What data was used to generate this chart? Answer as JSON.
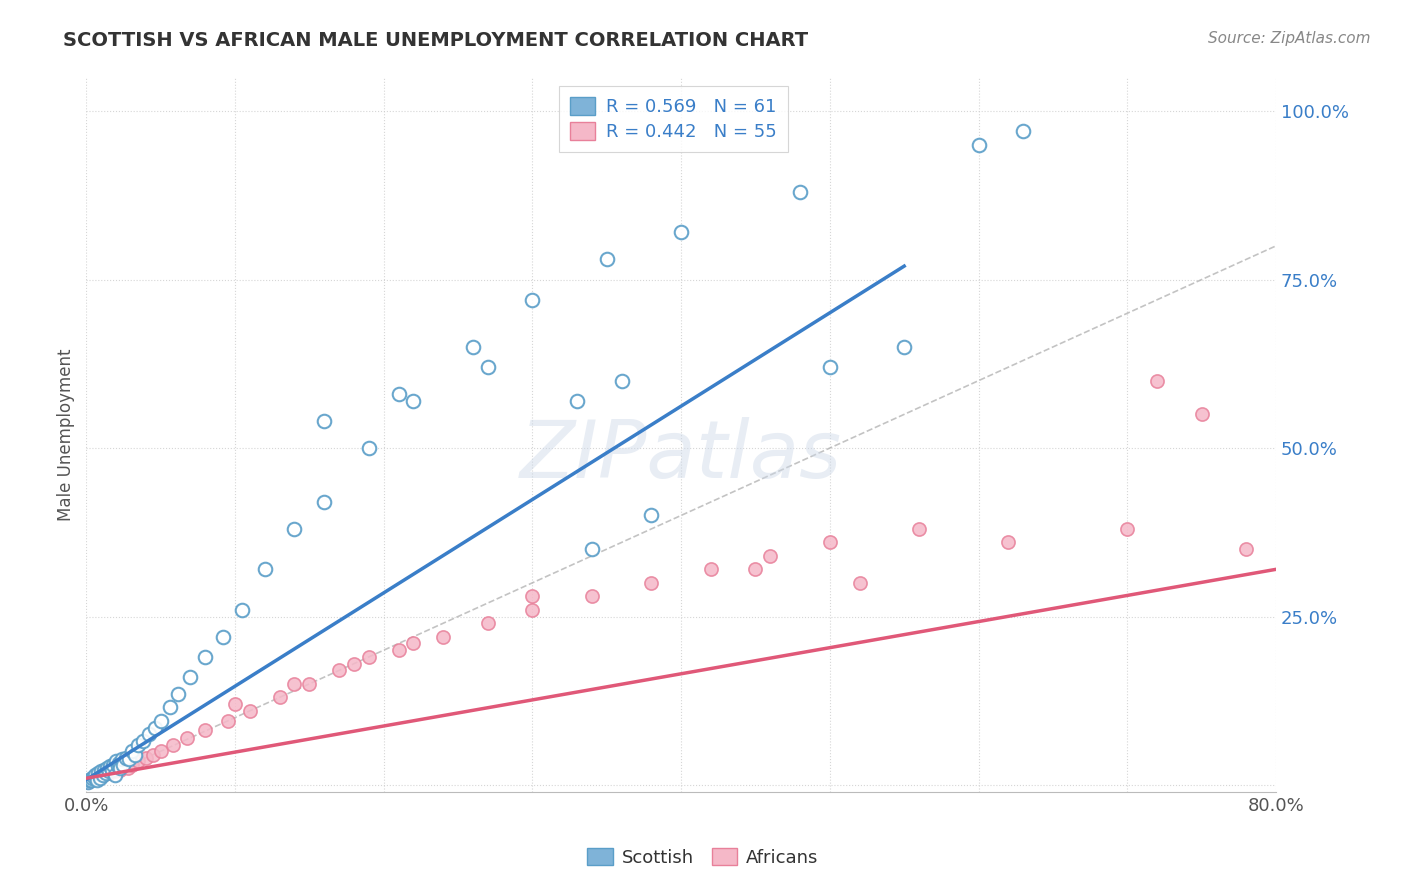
{
  "title": "SCOTTISH VS AFRICAN MALE UNEMPLOYMENT CORRELATION CHART",
  "source": "Source: ZipAtlas.com",
  "ylabel": "Male Unemployment",
  "xlim": [
    0.0,
    0.8
  ],
  "ylim": [
    -0.01,
    1.05
  ],
  "background_color": "#ffffff",
  "watermark": "ZIPatlas",
  "legend_r1": "R = 0.569   N = 61",
  "legend_r2": "R = 0.442   N = 55",
  "scottish_color": "#7fb3d8",
  "scottish_edge": "#5a9ec8",
  "african_color": "#f5b8c8",
  "african_edge": "#e8809a",
  "scottish_line_color": "#3a7ec8",
  "african_line_color": "#e05878",
  "ref_line_color": "#aaaaaa",
  "scottish_x": [
    0.001,
    0.002,
    0.003,
    0.004,
    0.005,
    0.006,
    0.007,
    0.008,
    0.009,
    0.01,
    0.011,
    0.012,
    0.013,
    0.014,
    0.015,
    0.016,
    0.017,
    0.018,
    0.019,
    0.02,
    0.021,
    0.022,
    0.023,
    0.024,
    0.025,
    0.027,
    0.029,
    0.031,
    0.033,
    0.035,
    0.038,
    0.042,
    0.046,
    0.05,
    0.056,
    0.062,
    0.07,
    0.08,
    0.092,
    0.105,
    0.12,
    0.14,
    0.16,
    0.19,
    0.22,
    0.26,
    0.3,
    0.35,
    0.4,
    0.48,
    0.16,
    0.21,
    0.27,
    0.34,
    0.38,
    0.6,
    0.63,
    0.33,
    0.36,
    0.55,
    0.5
  ],
  "scottish_y": [
    0.005,
    0.007,
    0.008,
    0.01,
    0.012,
    0.015,
    0.008,
    0.018,
    0.01,
    0.02,
    0.015,
    0.022,
    0.018,
    0.025,
    0.02,
    0.028,
    0.022,
    0.03,
    0.015,
    0.035,
    0.028,
    0.032,
    0.025,
    0.038,
    0.03,
    0.04,
    0.038,
    0.05,
    0.045,
    0.06,
    0.065,
    0.075,
    0.085,
    0.095,
    0.115,
    0.135,
    0.16,
    0.19,
    0.22,
    0.26,
    0.32,
    0.38,
    0.42,
    0.5,
    0.57,
    0.65,
    0.72,
    0.78,
    0.82,
    0.88,
    0.54,
    0.58,
    0.62,
    0.35,
    0.4,
    0.95,
    0.97,
    0.57,
    0.6,
    0.65,
    0.62
  ],
  "african_x": [
    0.001,
    0.002,
    0.003,
    0.004,
    0.005,
    0.006,
    0.007,
    0.008,
    0.009,
    0.01,
    0.011,
    0.013,
    0.015,
    0.017,
    0.019,
    0.021,
    0.023,
    0.025,
    0.028,
    0.031,
    0.035,
    0.04,
    0.045,
    0.05,
    0.058,
    0.068,
    0.08,
    0.095,
    0.11,
    0.13,
    0.15,
    0.17,
    0.19,
    0.21,
    0.24,
    0.27,
    0.3,
    0.34,
    0.38,
    0.42,
    0.46,
    0.5,
    0.56,
    0.62,
    0.7,
    0.78,
    0.3,
    0.45,
    0.52,
    0.72,
    0.75,
    0.1,
    0.14,
    0.18,
    0.22
  ],
  "african_y": [
    0.004,
    0.006,
    0.008,
    0.01,
    0.012,
    0.014,
    0.01,
    0.016,
    0.012,
    0.018,
    0.015,
    0.02,
    0.018,
    0.022,
    0.02,
    0.025,
    0.022,
    0.028,
    0.025,
    0.03,
    0.035,
    0.04,
    0.045,
    0.05,
    0.06,
    0.07,
    0.082,
    0.095,
    0.11,
    0.13,
    0.15,
    0.17,
    0.19,
    0.2,
    0.22,
    0.24,
    0.26,
    0.28,
    0.3,
    0.32,
    0.34,
    0.36,
    0.38,
    0.36,
    0.38,
    0.35,
    0.28,
    0.32,
    0.3,
    0.6,
    0.55,
    0.12,
    0.15,
    0.18,
    0.21
  ],
  "scottish_line_x": [
    0.0,
    0.55
  ],
  "scottish_line_y": [
    0.008,
    0.77
  ],
  "african_line_x": [
    0.0,
    0.8
  ],
  "african_line_y": [
    0.01,
    0.32
  ]
}
